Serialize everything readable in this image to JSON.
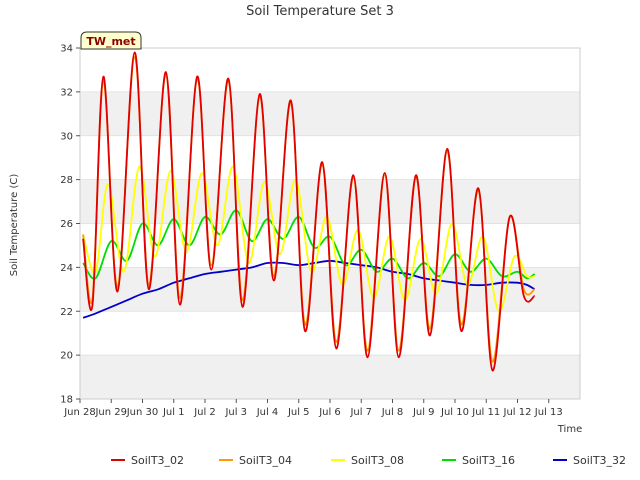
{
  "chart_data": {
    "type": "line",
    "title": "Soil Temperature Set 3",
    "xlabel": "Time",
    "ylabel": "Soil Temperature (C)",
    "badge": "TW_met",
    "ylim": [
      18,
      34
    ],
    "yticks": [
      "18",
      "20",
      "22",
      "24",
      "26",
      "28",
      "30",
      "32",
      "34"
    ],
    "xlim": [
      0,
      16
    ],
    "xticks": [
      "Jun 28",
      "Jun 29",
      "Jun 30",
      "Jul 1",
      "Jul 2",
      "Jul 3",
      "Jul 4",
      "Jul 5",
      "Jul 6",
      "Jul 7",
      "Jul 8",
      "Jul 9",
      "Jul 10",
      "Jul 11",
      "Jul 12",
      "Jul 13"
    ],
    "grid": "horizontal bands",
    "legend_position": "bottom",
    "x_unit": "days since Jun 28",
    "series": [
      {
        "name": "SoilT3_02",
        "color": "#e00000",
        "x": [
          0.1,
          0.4,
          0.75,
          1.2,
          1.75,
          2.2,
          2.75,
          3.2,
          3.75,
          4.2,
          4.75,
          5.2,
          5.75,
          6.2,
          6.75,
          7.2,
          7.75,
          8.2,
          8.75,
          9.2,
          9.75,
          10.2,
          10.75,
          11.2,
          11.75,
          12.2,
          12.75,
          13.2,
          13.75,
          14.2,
          14.55
        ],
        "y": [
          25.3,
          22.3,
          32.7,
          22.9,
          33.8,
          23.0,
          32.9,
          22.3,
          32.7,
          23.9,
          32.6,
          22.2,
          31.9,
          23.4,
          31.6,
          21.1,
          28.8,
          20.3,
          28.2,
          19.9,
          28.3,
          19.9,
          28.2,
          20.9,
          29.4,
          21.1,
          27.6,
          19.3,
          26.3,
          22.7,
          22.7
        ]
      },
      {
        "name": "SoilT3_04",
        "color": "#ff9900",
        "x": [
          0.1,
          0.4,
          0.75,
          1.2,
          1.75,
          2.2,
          2.75,
          3.2,
          3.75,
          4.2,
          4.75,
          5.2,
          5.75,
          6.2,
          6.75,
          7.2,
          7.75,
          8.2,
          8.75,
          9.2,
          9.75,
          10.2,
          10.75,
          11.2,
          11.75,
          12.2,
          12.75,
          13.2,
          13.75,
          14.2,
          14.55
        ],
        "y": [
          25.5,
          22.6,
          32.5,
          23.1,
          33.6,
          23.2,
          32.8,
          22.6,
          32.6,
          24.1,
          32.5,
          22.5,
          31.8,
          23.6,
          31.5,
          21.4,
          28.7,
          20.6,
          28.1,
          20.2,
          28.2,
          20.2,
          28.1,
          21.2,
          29.3,
          21.4,
          27.5,
          19.7,
          26.3,
          23.0,
          23.0
        ]
      },
      {
        "name": "SoilT3_08",
        "color": "#ffff00",
        "x": [
          0.1,
          0.5,
          0.9,
          1.4,
          1.9,
          2.4,
          2.9,
          3.4,
          3.9,
          4.4,
          4.9,
          5.4,
          5.9,
          6.4,
          6.9,
          7.4,
          7.9,
          8.4,
          8.9,
          9.4,
          9.9,
          10.4,
          10.9,
          11.4,
          11.9,
          12.4,
          12.9,
          13.4,
          13.9,
          14.3,
          14.55
        ],
        "y": [
          25.5,
          23.8,
          27.8,
          23.8,
          28.6,
          24.5,
          28.4,
          24.7,
          28.3,
          25.0,
          28.6,
          24.2,
          27.9,
          24.6,
          28.0,
          23.8,
          26.3,
          23.2,
          25.7,
          22.6,
          25.4,
          22.5,
          25.3,
          22.8,
          26.0,
          23.2,
          25.4,
          22.0,
          24.5,
          23.6,
          23.6
        ]
      },
      {
        "name": "SoilT3_16",
        "color": "#00dd00",
        "x": [
          0.1,
          0.5,
          1.0,
          1.5,
          2.0,
          2.5,
          3.0,
          3.5,
          4.0,
          4.5,
          5.0,
          5.5,
          6.0,
          6.5,
          7.0,
          7.5,
          8.0,
          8.5,
          9.0,
          9.5,
          10.0,
          10.5,
          11.0,
          11.5,
          12.0,
          12.5,
          13.0,
          13.5,
          14.0,
          14.3,
          14.55
        ],
        "y": [
          24.2,
          23.5,
          25.2,
          24.3,
          26.0,
          25.0,
          26.2,
          25.0,
          26.3,
          25.5,
          26.6,
          25.2,
          26.2,
          25.3,
          26.3,
          24.9,
          25.4,
          24.1,
          24.8,
          23.8,
          24.4,
          23.5,
          24.2,
          23.6,
          24.6,
          23.8,
          24.4,
          23.6,
          23.8,
          23.5,
          23.7
        ]
      },
      {
        "name": "SoilT3_32",
        "color": "#0000cc",
        "x": [
          0.1,
          0.5,
          1.0,
          1.5,
          2.0,
          2.5,
          3.0,
          3.5,
          4.0,
          4.5,
          5.0,
          5.5,
          6.0,
          6.5,
          7.0,
          7.5,
          8.0,
          8.5,
          9.0,
          9.5,
          10.0,
          10.5,
          11.0,
          11.5,
          12.0,
          12.5,
          13.0,
          13.5,
          14.0,
          14.3,
          14.55
        ],
        "y": [
          21.7,
          21.9,
          22.2,
          22.5,
          22.8,
          23.0,
          23.3,
          23.5,
          23.7,
          23.8,
          23.9,
          24.0,
          24.2,
          24.2,
          24.1,
          24.2,
          24.3,
          24.2,
          24.1,
          24.0,
          23.8,
          23.7,
          23.5,
          23.4,
          23.3,
          23.2,
          23.2,
          23.3,
          23.3,
          23.2,
          23.0
        ]
      }
    ]
  }
}
